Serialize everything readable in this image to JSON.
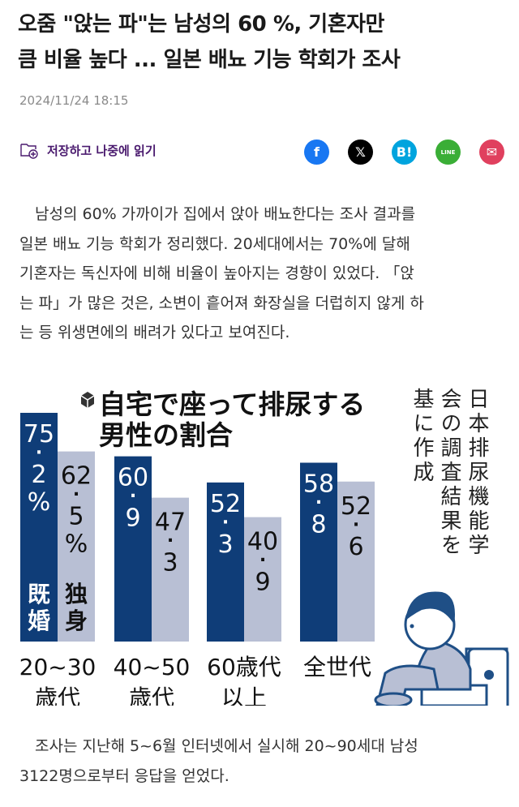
{
  "article": {
    "title_lines": [
      "오줌 \"앉는 파\"는 남성의 60 %, 기혼자만",
      "큼 비율 높다 ... 일본 배뇨 기능 학회가 조사"
    ],
    "date": "2024/11/24 18:15",
    "save_label": "저장하고 나중에 읽기",
    "share": [
      {
        "icon": "facebook-icon",
        "glyph": "f",
        "color": "#1877f2"
      },
      {
        "icon": "x-icon",
        "glyph": "𝕏",
        "color": "#000000"
      },
      {
        "icon": "hatena-bookmark-icon",
        "glyph": "B!",
        "color": "#00a4de"
      },
      {
        "icon": "line-icon",
        "glyph": "LINE",
        "color": "#3aae36"
      },
      {
        "icon": "mail-icon",
        "glyph": "✉",
        "color": "#e0405e"
      }
    ],
    "paragraph1": [
      "　남성의 60% 가까이가 집에서 앉아 배뇨한다는 조사 결과를",
      "일본 배뇨 기능 학회가 정리했다. 20세대에서는 70%에 달해",
      "기혼자는 독신자에 비해 비율이 높아지는 경향이 있었다. 「앉",
      "는 파」가 많은 것은, 소변이 흩어져 화장실을 더럽히지 않게 하",
      "는 등 위생면에의 배려가 있다고 보여진다."
    ],
    "paragraph2": [
      "　조사는 지난해 5~6월 인터넷에서 실시해 20~90세대 남성",
      "3122명으로부터 응답을 얻었다."
    ]
  },
  "chart_data": {
    "type": "bar",
    "title_lines": [
      "自宅で座って排尿する",
      "男性の割合"
    ],
    "source": "日本排尿機能学会の調査結果を基に作成",
    "source_columns": [
      "日本排尿機能学",
      "会の調査結果を",
      "基に作成"
    ],
    "categories": [
      [
        "20~30",
        "歳代"
      ],
      [
        "40~50",
        "歳代"
      ],
      [
        "60歳代",
        "以上"
      ],
      [
        "全世代"
      ]
    ],
    "series": [
      {
        "name": "既婚",
        "values": [
          75.2,
          60.9,
          52.3,
          58.8
        ],
        "color": "#0f3d78"
      },
      {
        "name": "独身",
        "values": [
          62.5,
          47.3,
          40.9,
          52.6
        ],
        "color": "#b8bfd4"
      }
    ],
    "unit": "%",
    "unit_shown_on_first_group": true,
    "ylim": [
      0,
      75.2
    ]
  }
}
